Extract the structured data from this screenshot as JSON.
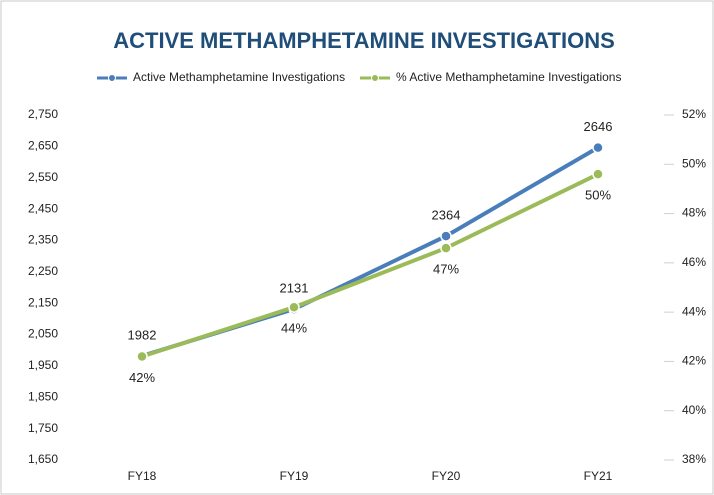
{
  "chart_data": {
    "type": "line",
    "title": "ACTIVE METHAMPHETAMINE INVESTIGATIONS",
    "categories": [
      "FY18",
      "FY19",
      "FY20",
      "FY21"
    ],
    "series": [
      {
        "name": "Active Methamphetamine Investigations",
        "color": "#4a7ebb",
        "values": [
          1982,
          2131,
          2364,
          2646
        ]
      },
      {
        "name": "% Active Methamphetamine Investigations",
        "color": "#9bbb59",
        "axis": "y2",
        "values": [
          42.2,
          44.2,
          46.6,
          49.6
        ],
        "value_labels": [
          "42%",
          "44%",
          "47%",
          "50%"
        ]
      }
    ],
    "ylim": [
      1650,
      2750
    ],
    "yticks": [
      {
        "value": 1650,
        "label": "1,650"
      },
      {
        "value": 1750,
        "label": "1,750"
      },
      {
        "value": 1850,
        "label": "1,850"
      },
      {
        "value": 1950,
        "label": "1,950"
      },
      {
        "value": 2050,
        "label": "2,050"
      },
      {
        "value": 2150,
        "label": "2,150"
      },
      {
        "value": 2250,
        "label": "2,250"
      },
      {
        "value": 2350,
        "label": "2,350"
      },
      {
        "value": 2450,
        "label": "2,450"
      },
      {
        "value": 2550,
        "label": "2,550"
      },
      {
        "value": 2650,
        "label": "2,650"
      },
      {
        "value": 2750,
        "label": "2,750"
      }
    ],
    "y2lim": [
      38,
      52
    ],
    "y2ticks": [
      {
        "value": 38,
        "label": "38%"
      },
      {
        "value": 40,
        "label": "40%"
      },
      {
        "value": 42,
        "label": "42%"
      },
      {
        "value": 44,
        "label": "44%"
      },
      {
        "value": 46,
        "label": "46%"
      },
      {
        "value": 48,
        "label": "48%"
      },
      {
        "value": 50,
        "label": "50%"
      },
      {
        "value": 52,
        "label": "52%"
      }
    ],
    "legend": "top"
  }
}
